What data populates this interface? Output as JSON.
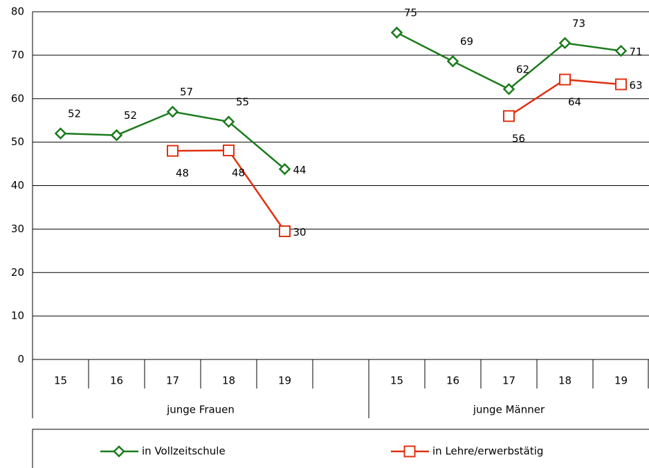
{
  "chart_data": {
    "type": "line",
    "categories": [
      "15",
      "16",
      "17",
      "18",
      "19",
      null,
      "15",
      "16",
      "17",
      "18",
      "19"
    ],
    "groups": [
      "junge Frauen",
      "junge Männer"
    ],
    "ylim": [
      0,
      80
    ],
    "yticks": [
      0,
      10,
      20,
      30,
      40,
      50,
      60,
      70,
      80
    ],
    "grid": true,
    "series": [
      {
        "name": "in Vollzeitschule",
        "color": "#1a7a1a",
        "marker": "diamond",
        "values": [
          52,
          51.6,
          57,
          54.7,
          43.8,
          null,
          75.2,
          68.6,
          62.2,
          72.8,
          71
        ],
        "value_labels": [
          "52",
          "52",
          "57",
          "55",
          "44",
          null,
          "75",
          "69",
          "62",
          "73",
          "71"
        ]
      },
      {
        "name": "in Lehre/erwerbstätig",
        "color": "#e03010",
        "marker": "square",
        "values": [
          null,
          null,
          48,
          48.1,
          29.5,
          null,
          null,
          null,
          56,
          64.4,
          63.3
        ],
        "value_labels": [
          null,
          null,
          "48",
          "48",
          "30",
          null,
          null,
          null,
          "56",
          "64",
          "63"
        ]
      }
    ]
  }
}
